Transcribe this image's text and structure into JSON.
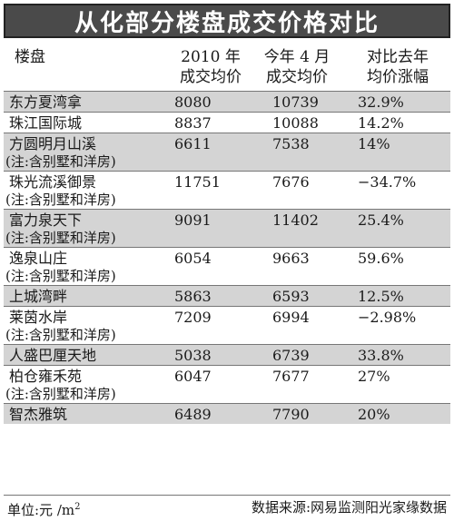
{
  "title": "从化部分楼盘成交价格对比",
  "header": {
    "name": "楼盘",
    "col_2010_line1": "2010 年",
    "col_2010_line2": "成交均价",
    "col_now_line1": "今年 4 月",
    "col_now_line2": "成交均价",
    "col_chg_line1": "对比去年",
    "col_chg_line2": "均价涨幅"
  },
  "rows": [
    {
      "name": "东方夏湾拿",
      "note": "",
      "p2010": "8080",
      "pnow": "10739",
      "change": "32.9%"
    },
    {
      "name": "珠江国际城",
      "note": "",
      "p2010": "8837",
      "pnow": "10088",
      "change": "14.2%"
    },
    {
      "name": "方圆明月山溪",
      "note": "(注:含别墅和洋房)",
      "p2010": "6611",
      "pnow": "7538",
      "change": "14%"
    },
    {
      "name": "珠光流溪御景",
      "note": "(注:含别墅和洋房)",
      "p2010": "11751",
      "pnow": "7676",
      "change": "−34.7%"
    },
    {
      "name": "富力泉天下",
      "note": "(注:含别墅和洋房)",
      "p2010": "9091",
      "pnow": "11402",
      "change": "25.4%"
    },
    {
      "name": "逸泉山庄",
      "note": "(注:含别墅和洋房)",
      "p2010": "6054",
      "pnow": "9663",
      "change": "59.6%"
    },
    {
      "name": "上城湾畔",
      "note": "",
      "p2010": "5863",
      "pnow": "6593",
      "change": "12.5%"
    },
    {
      "name": "莱茵水岸",
      "note": "(注:含别墅和洋房)",
      "p2010": "7209",
      "pnow": "6994",
      "change": "−2.98%"
    },
    {
      "name": "人盛巴厘天地",
      "note": "",
      "p2010": "5038",
      "pnow": "6739",
      "change": "33.8%"
    },
    {
      "name": "柏仓雍禾苑",
      "note": "(注:含别墅和洋房)",
      "p2010": "6047",
      "pnow": "7677",
      "change": "27%"
    },
    {
      "name": "智杰雅筑",
      "note": "",
      "p2010": "6489",
      "pnow": "7790",
      "change": "20%"
    }
  ],
  "footer": {
    "unit": "单位:元 /m",
    "unit_sup": "2",
    "source": "数据来源:网易监测阳光家缘数据"
  },
  "colors": {
    "title_bg": "#4a4a4a",
    "shade": "#d4d4d4"
  }
}
